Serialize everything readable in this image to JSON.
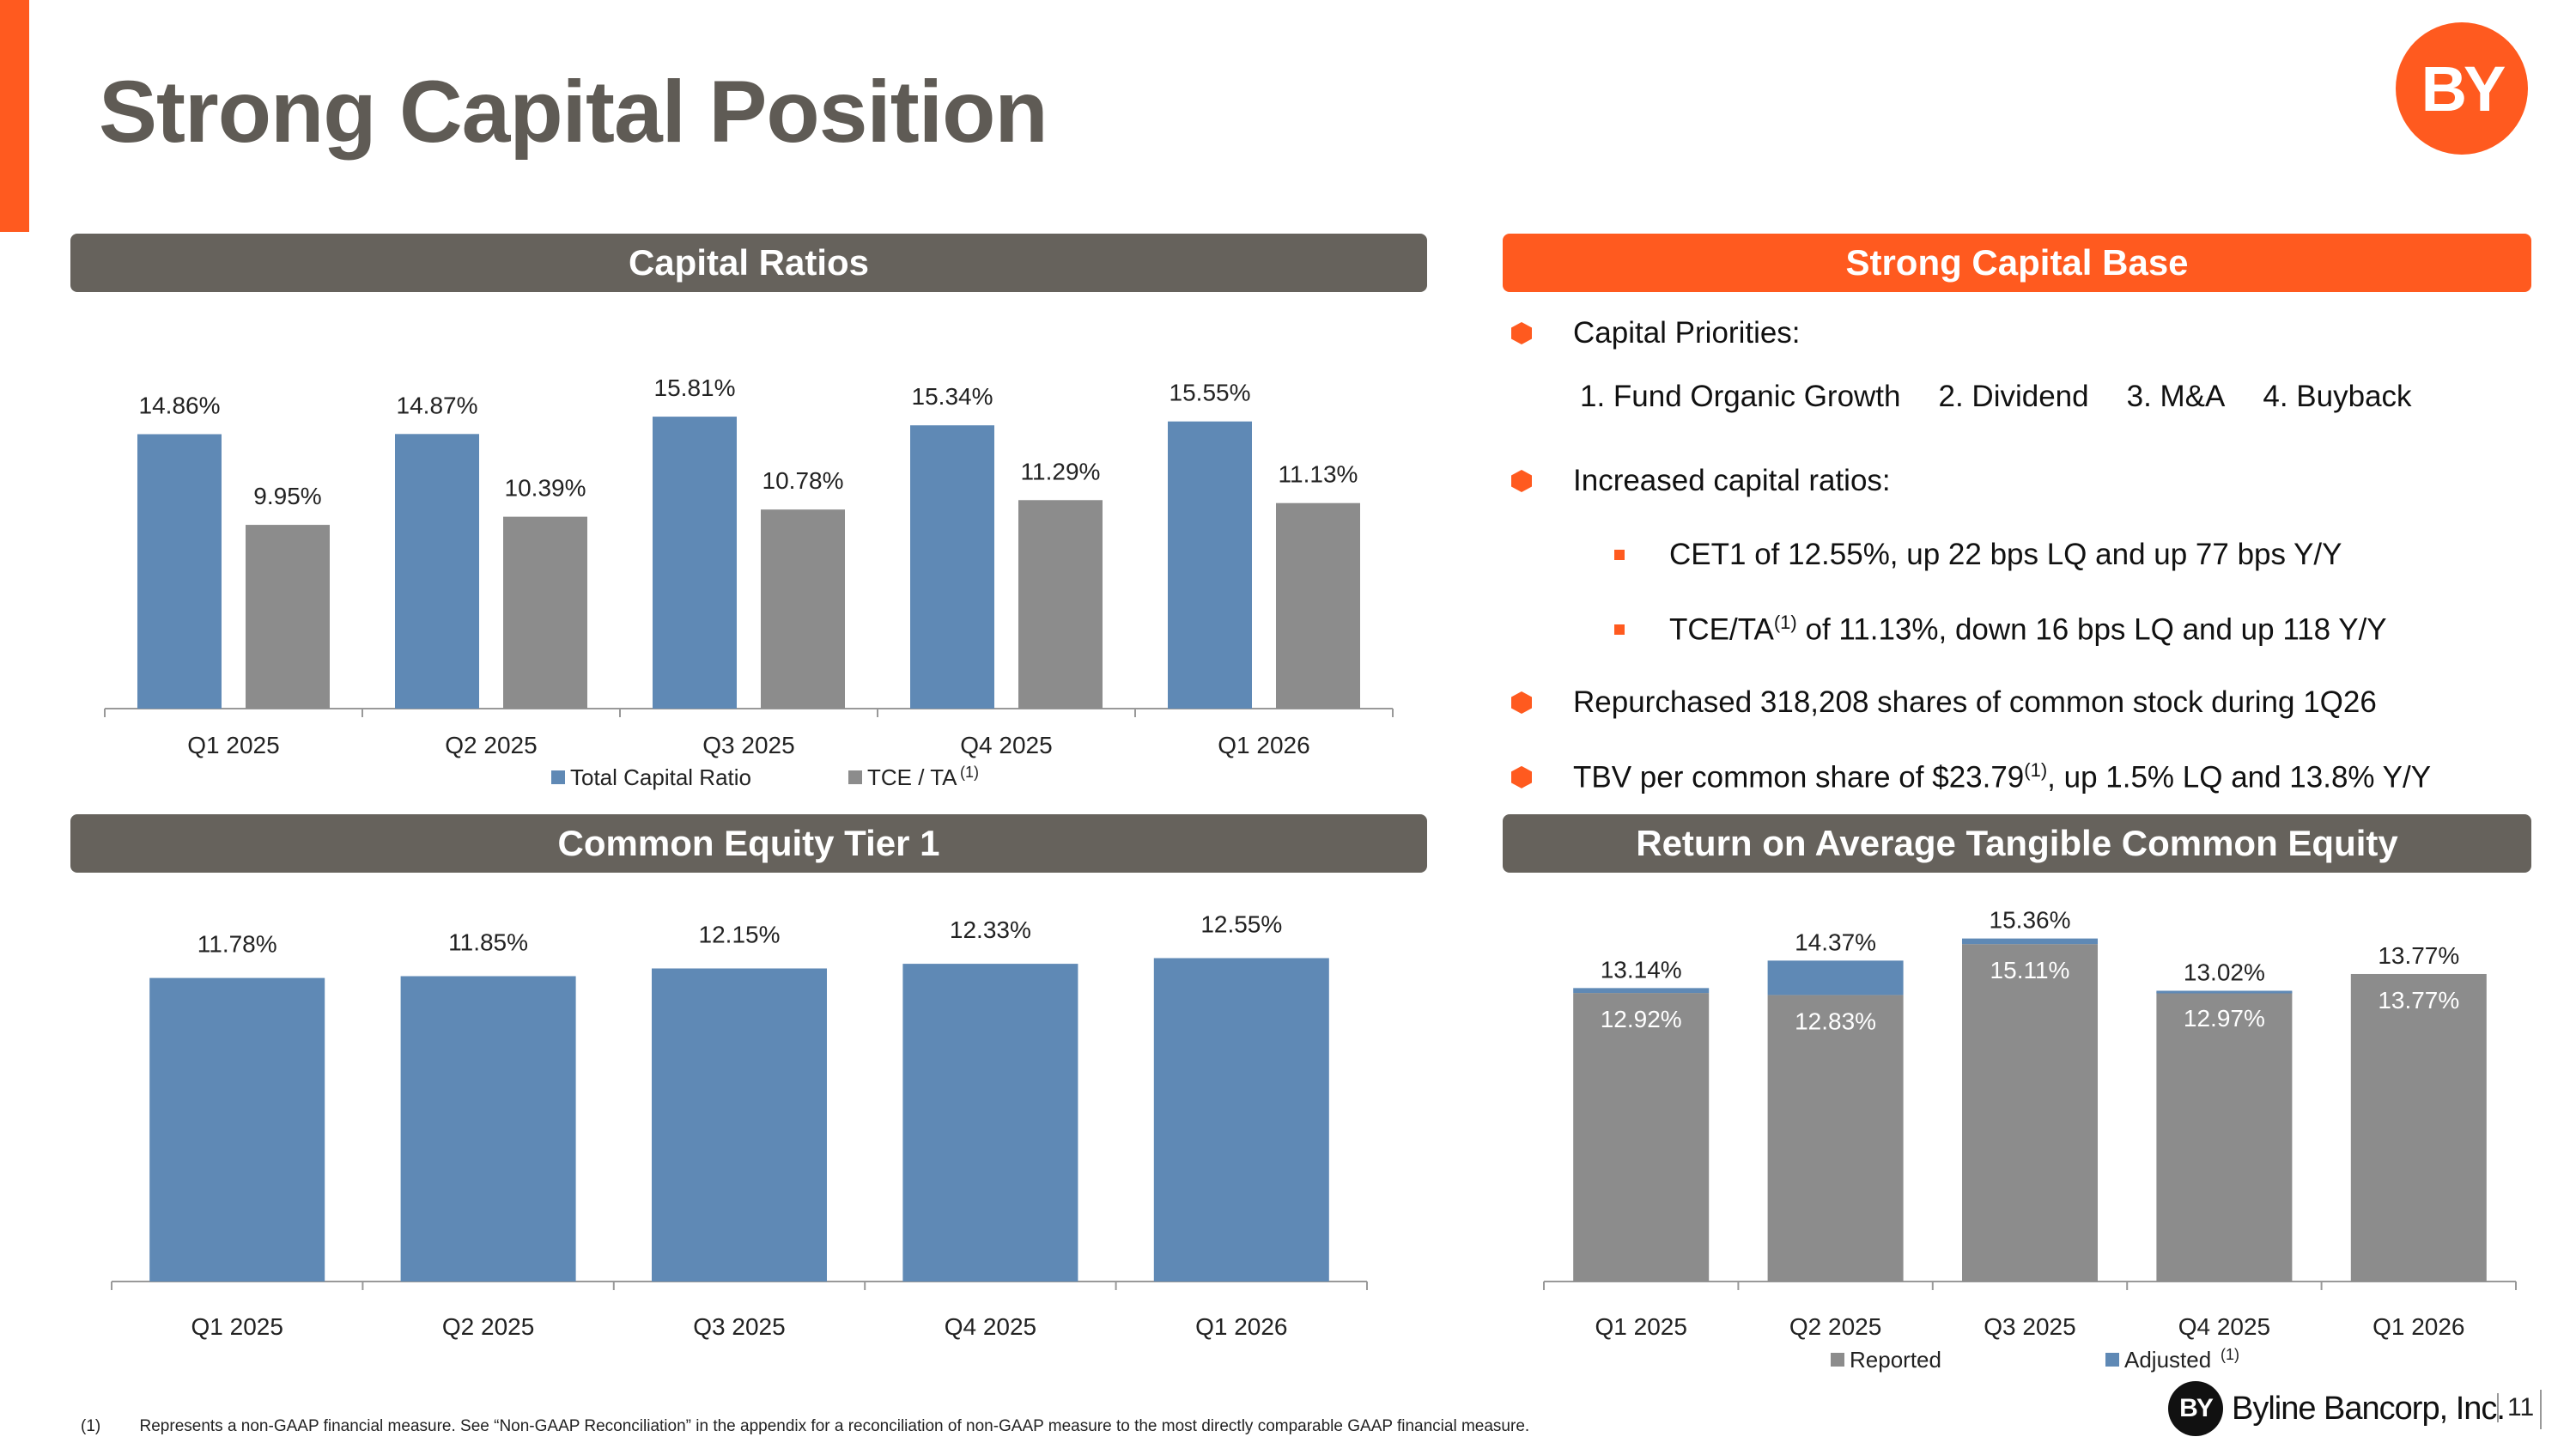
{
  "title": "Strong Capital Position",
  "logo_text": "BY",
  "sections": {
    "capital_ratios": "Capital Ratios",
    "strong_capital_base": "Strong Capital Base",
    "cet1": "Common Equity Tier 1",
    "rotce": "Return on Average Tangible Common Equity"
  },
  "bullets": {
    "priorities_label": "Capital Priorities:",
    "priorities": [
      "1. Fund Organic Growth",
      "2. Dividend",
      "3. M&A",
      "4. Buyback"
    ],
    "increased": "Increased capital ratios:",
    "cet1_text": "CET1 of 12.55%, up 22 bps LQ and up 77 bps Y/Y",
    "tce_pre": "TCE/TA",
    "tce_sup": "(1)",
    "tce_post": " of 11.13%, down 16 bps LQ and up 118 Y/Y",
    "repurchased": "Repurchased 318,208 shares of common stock during 1Q26",
    "tbv_pre": "TBV per common share of $23.79",
    "tbv_sup": "(1)",
    "tbv_post": ", up 1.5% LQ and 13.8% Y/Y"
  },
  "footnote": {
    "num": "(1)",
    "text": "Represents a non-GAAP financial measure.  See “Non-GAAP Reconciliation” in the appendix for a reconciliation of non-GAAP measure to the most directly comparable GAAP financial measure."
  },
  "footer": {
    "company": "Byline Bancorp, Inc.",
    "mark": "BY",
    "page": "11"
  },
  "colors": {
    "blue": "#5f89b5",
    "gray": "#8c8c8c",
    "orange": "#ff5a1f",
    "header_gray": "#66625c"
  },
  "chart_data": [
    {
      "type": "bar",
      "title": "Capital Ratios",
      "categories": [
        "Q1 2025",
        "Q2 2025",
        "Q3 2025",
        "Q4 2025",
        "Q1 2026"
      ],
      "series": [
        {
          "name": "Total Capital Ratio",
          "values": [
            14.86,
            14.87,
            15.81,
            15.34,
            15.55
          ],
          "labels": [
            "14.86%",
            "14.87%",
            "15.81%",
            "15.34%",
            "15.55%"
          ],
          "color": "#5f89b5"
        },
        {
          "name": "TCE / TA",
          "name_sup": "(1)",
          "values": [
            9.95,
            10.39,
            10.78,
            11.29,
            11.13
          ],
          "labels": [
            "9.95%",
            "10.39%",
            "10.78%",
            "11.29%",
            "11.13%"
          ],
          "color": "#8c8c8c"
        }
      ],
      "legend": "bottom",
      "grid": false
    },
    {
      "type": "bar",
      "title": "Common Equity Tier 1",
      "categories": [
        "Q1 2025",
        "Q2 2025",
        "Q3 2025",
        "Q4 2025",
        "Q1 2026"
      ],
      "values": [
        11.78,
        11.85,
        12.15,
        12.33,
        12.55
      ],
      "labels": [
        "11.78%",
        "11.85%",
        "12.15%",
        "12.33%",
        "12.55%"
      ],
      "color": "#5f89b5",
      "grid": false
    },
    {
      "type": "bar",
      "stacked": true,
      "title": "Return on Average Tangible Common Equity",
      "categories": [
        "Q1 2025",
        "Q2 2025",
        "Q3 2025",
        "Q4 2025",
        "Q1 2026"
      ],
      "series": [
        {
          "name": "Reported",
          "values": [
            12.92,
            12.83,
            15.11,
            12.97,
            13.77
          ],
          "labels": [
            "12.92%",
            "12.83%",
            "15.11%",
            "12.97%",
            "13.77%"
          ],
          "color": "#8c8c8c"
        },
        {
          "name": "Adjusted",
          "name_sup": "(1)",
          "totals": [
            13.14,
            14.37,
            15.36,
            13.02,
            13.77
          ],
          "labels": [
            "13.14%",
            "14.37%",
            "15.36%",
            "13.02%",
            "13.77%"
          ],
          "color": "#5f89b5"
        }
      ],
      "legend": "bottom",
      "grid": false
    }
  ]
}
